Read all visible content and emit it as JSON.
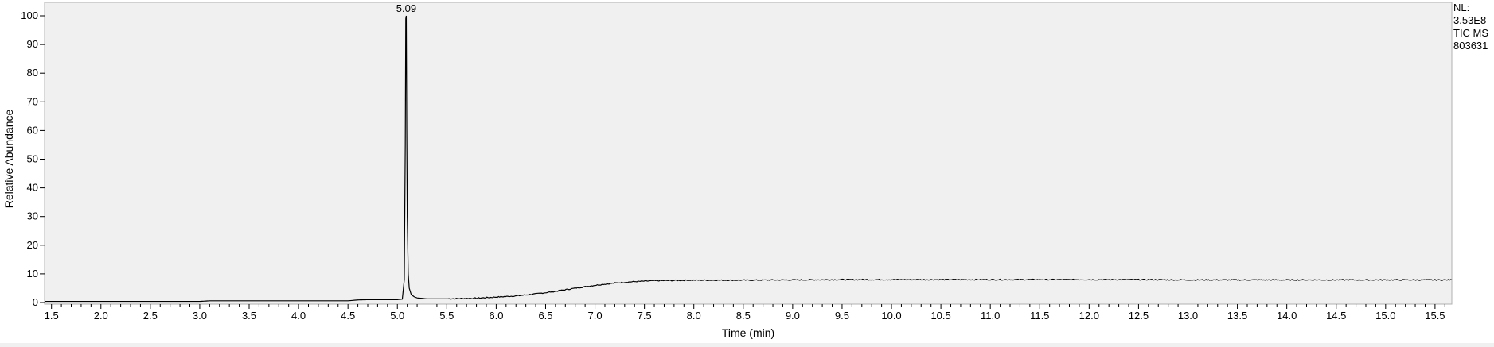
{
  "info": {
    "line1": "NL:",
    "line2": "3.53E8",
    "line3": "TIC  MS",
    "line4": "803631"
  },
  "chart_data": {
    "type": "line",
    "title": "",
    "xlabel": "Time (min)",
    "ylabel": "Relative Abundance",
    "xlim": [
      1.43,
      15.67
    ],
    "ylim": [
      0,
      100
    ],
    "x_ticks": [
      1.5,
      2.0,
      2.5,
      3.0,
      3.5,
      4.0,
      4.5,
      5.0,
      5.5,
      6.0,
      6.5,
      7.0,
      7.5,
      8.0,
      8.5,
      9.0,
      9.5,
      10.0,
      10.5,
      11.0,
      11.5,
      12.0,
      12.5,
      13.0,
      13.5,
      14.0,
      14.5,
      15.0,
      15.5
    ],
    "x_tick_labels": [
      "1.5",
      "2.0",
      "2.5",
      "3.0",
      "3.5",
      "4.0",
      "4.5",
      "5.0",
      "5.5",
      "6.0",
      "6.5",
      "7.0",
      "7.5",
      "8.0",
      "8.5",
      "9.0",
      "9.5",
      "10.0",
      "10.5",
      "11.0",
      "11.5",
      "12.0",
      "12.5",
      "13.0",
      "13.5",
      "14.0",
      "14.5",
      "15.0",
      "15.5"
    ],
    "y_ticks": [
      0,
      10,
      20,
      30,
      40,
      50,
      60,
      70,
      80,
      90,
      100
    ],
    "y_tick_labels": [
      "0",
      "10",
      "20",
      "30",
      "40",
      "50",
      "60",
      "70",
      "80",
      "90",
      "100"
    ],
    "grid": false,
    "background": "#f0f0f0",
    "line_color": "#000000",
    "series": [
      {
        "x": [
          1.43,
          2.0,
          2.5,
          3.0,
          3.1,
          3.2,
          3.5,
          4.0,
          4.5,
          4.6,
          4.7,
          4.9,
          5.0,
          5.05,
          5.07,
          5.08,
          5.085,
          5.09,
          5.095,
          5.1,
          5.11,
          5.12,
          5.14,
          5.17,
          5.2,
          5.3,
          5.5,
          5.8,
          6.0,
          6.2,
          6.4,
          6.6,
          6.8,
          7.0,
          7.2,
          7.4,
          7.6,
          7.8,
          8.0,
          8.5,
          9.0,
          9.5,
          10.0,
          10.5,
          11.0,
          11.5,
          12.0,
          12.5,
          13.0,
          13.5,
          14.0,
          14.5,
          15.0,
          15.5,
          15.67
        ],
        "y": [
          0.4,
          0.4,
          0.4,
          0.4,
          0.6,
          0.6,
          0.6,
          0.6,
          0.6,
          0.9,
          1.0,
          1.0,
          1.0,
          1.2,
          8.0,
          55.0,
          99.0,
          100.0,
          60.0,
          30.0,
          10.0,
          5.0,
          2.8,
          2.0,
          1.6,
          1.3,
          1.3,
          1.5,
          1.9,
          2.3,
          3.0,
          3.9,
          5.0,
          6.0,
          6.8,
          7.3,
          7.6,
          7.7,
          7.8,
          7.8,
          7.9,
          8.0,
          8.0,
          8.0,
          8.0,
          8.0,
          8.0,
          8.0,
          7.9,
          7.9,
          7.9,
          7.9,
          7.9,
          7.9,
          7.9
        ]
      }
    ],
    "annotations": [
      {
        "x": 5.09,
        "y": 100,
        "text": "5.09"
      }
    ]
  }
}
